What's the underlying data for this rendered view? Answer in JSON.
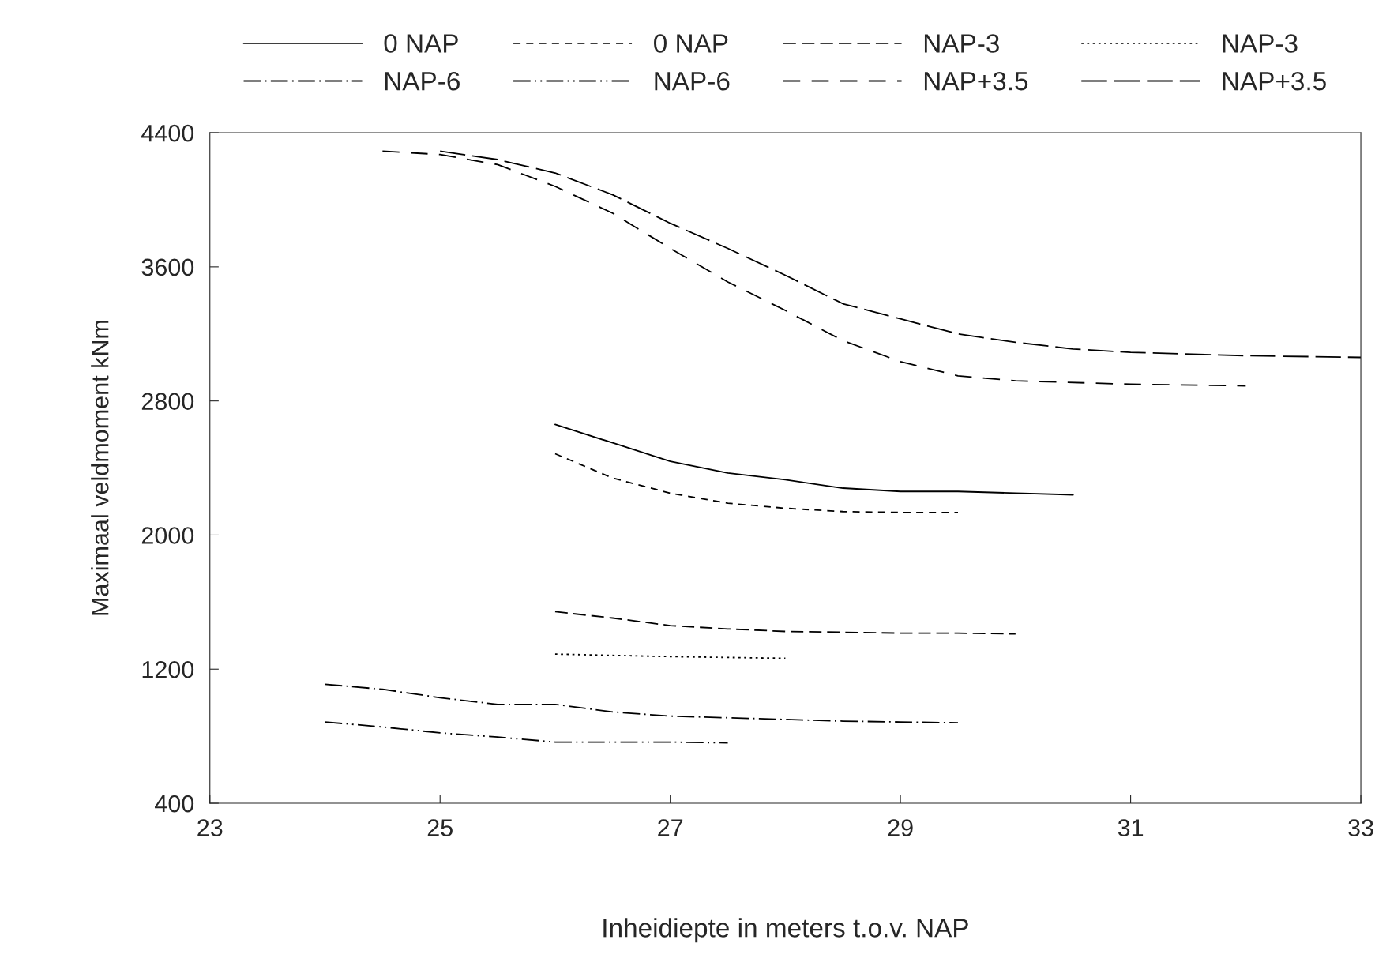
{
  "chart_data": {
    "type": "line",
    "xlabel": "Inheidiepte in meters t.o.v. NAP",
    "ylabel": "Maximaal veldmoment kNm",
    "xlim": [
      23,
      33
    ],
    "xticks": [
      23,
      25,
      27,
      29,
      31,
      33
    ],
    "ylim": [
      400,
      4400
    ],
    "yticks": [
      400,
      1200,
      2000,
      2800,
      3600,
      4400
    ],
    "grid": false,
    "legend": "top",
    "series": [
      {
        "name": "0 NAP",
        "color": "#000000",
        "line_style": "solid",
        "x": [
          26,
          26.5,
          27,
          27.5,
          28,
          28.5,
          29,
          29.5,
          30,
          30.5
        ],
        "values": [
          2660,
          2550,
          2440,
          2370,
          2330,
          2280,
          2260,
          2260,
          2250,
          2240
        ]
      },
      {
        "name": "0 NAP",
        "color": "#000000",
        "line_style": "dashed",
        "x": [
          26,
          26.5,
          27,
          27.5,
          28,
          28.5,
          29,
          29.5
        ],
        "values": [
          2485,
          2340,
          2250,
          2190,
          2160,
          2140,
          2135,
          2135
        ]
      },
      {
        "name": "NAP-3",
        "color": "#000000",
        "line_style": "long dashed",
        "x": [
          26,
          26.5,
          27,
          27.5,
          28,
          28.5,
          29,
          29.5,
          30
        ],
        "values": [
          1543,
          1505,
          1460,
          1440,
          1425,
          1420,
          1415,
          1415,
          1410
        ]
      },
      {
        "name": "NAP-3",
        "color": "#000000",
        "line_style": "dotted",
        "x": [
          26,
          27,
          28
        ],
        "values": [
          1290,
          1275,
          1265
        ]
      },
      {
        "name": "NAP-6",
        "color": "#000000",
        "line_style": "dashdot",
        "x": [
          24,
          24.5,
          25,
          25.5,
          26,
          26.5,
          27,
          27.5,
          28,
          28.5,
          29,
          29.5
        ],
        "values": [
          1110,
          1080,
          1030,
          990,
          990,
          945,
          920,
          910,
          900,
          890,
          885,
          880
        ]
      },
      {
        "name": "NAP-6",
        "color": "#000000",
        "line_style": "dashdotdot",
        "x": [
          24,
          24.5,
          25,
          25.5,
          26,
          26.5,
          27,
          27.5
        ],
        "values": [
          885,
          855,
          820,
          795,
          765,
          765,
          765,
          760
        ]
      },
      {
        "name": "NAP+3.5",
        "color": "#000000",
        "line_style": "spaced dashed",
        "x": [
          24.5,
          25,
          25.5,
          26,
          26.5,
          27,
          27.5,
          28,
          28.5,
          29,
          29.5,
          30,
          31,
          32
        ],
        "values": [
          4290,
          4270,
          4210,
          4080,
          3920,
          3710,
          3510,
          3340,
          3160,
          3035,
          2950,
          2920,
          2900,
          2890
        ]
      },
      {
        "name": "NAP+3.5",
        "color": "#000000",
        "line_style": "extra long dashed",
        "x": [
          25,
          25.5,
          26,
          26.5,
          27,
          27.5,
          28,
          28.5,
          29,
          29.5,
          30,
          30.5,
          31,
          32,
          33
        ],
        "values": [
          4290,
          4240,
          4160,
          4030,
          3860,
          3710,
          3550,
          3380,
          3290,
          3200,
          3150,
          3110,
          3090,
          3070,
          3060
        ]
      }
    ]
  }
}
